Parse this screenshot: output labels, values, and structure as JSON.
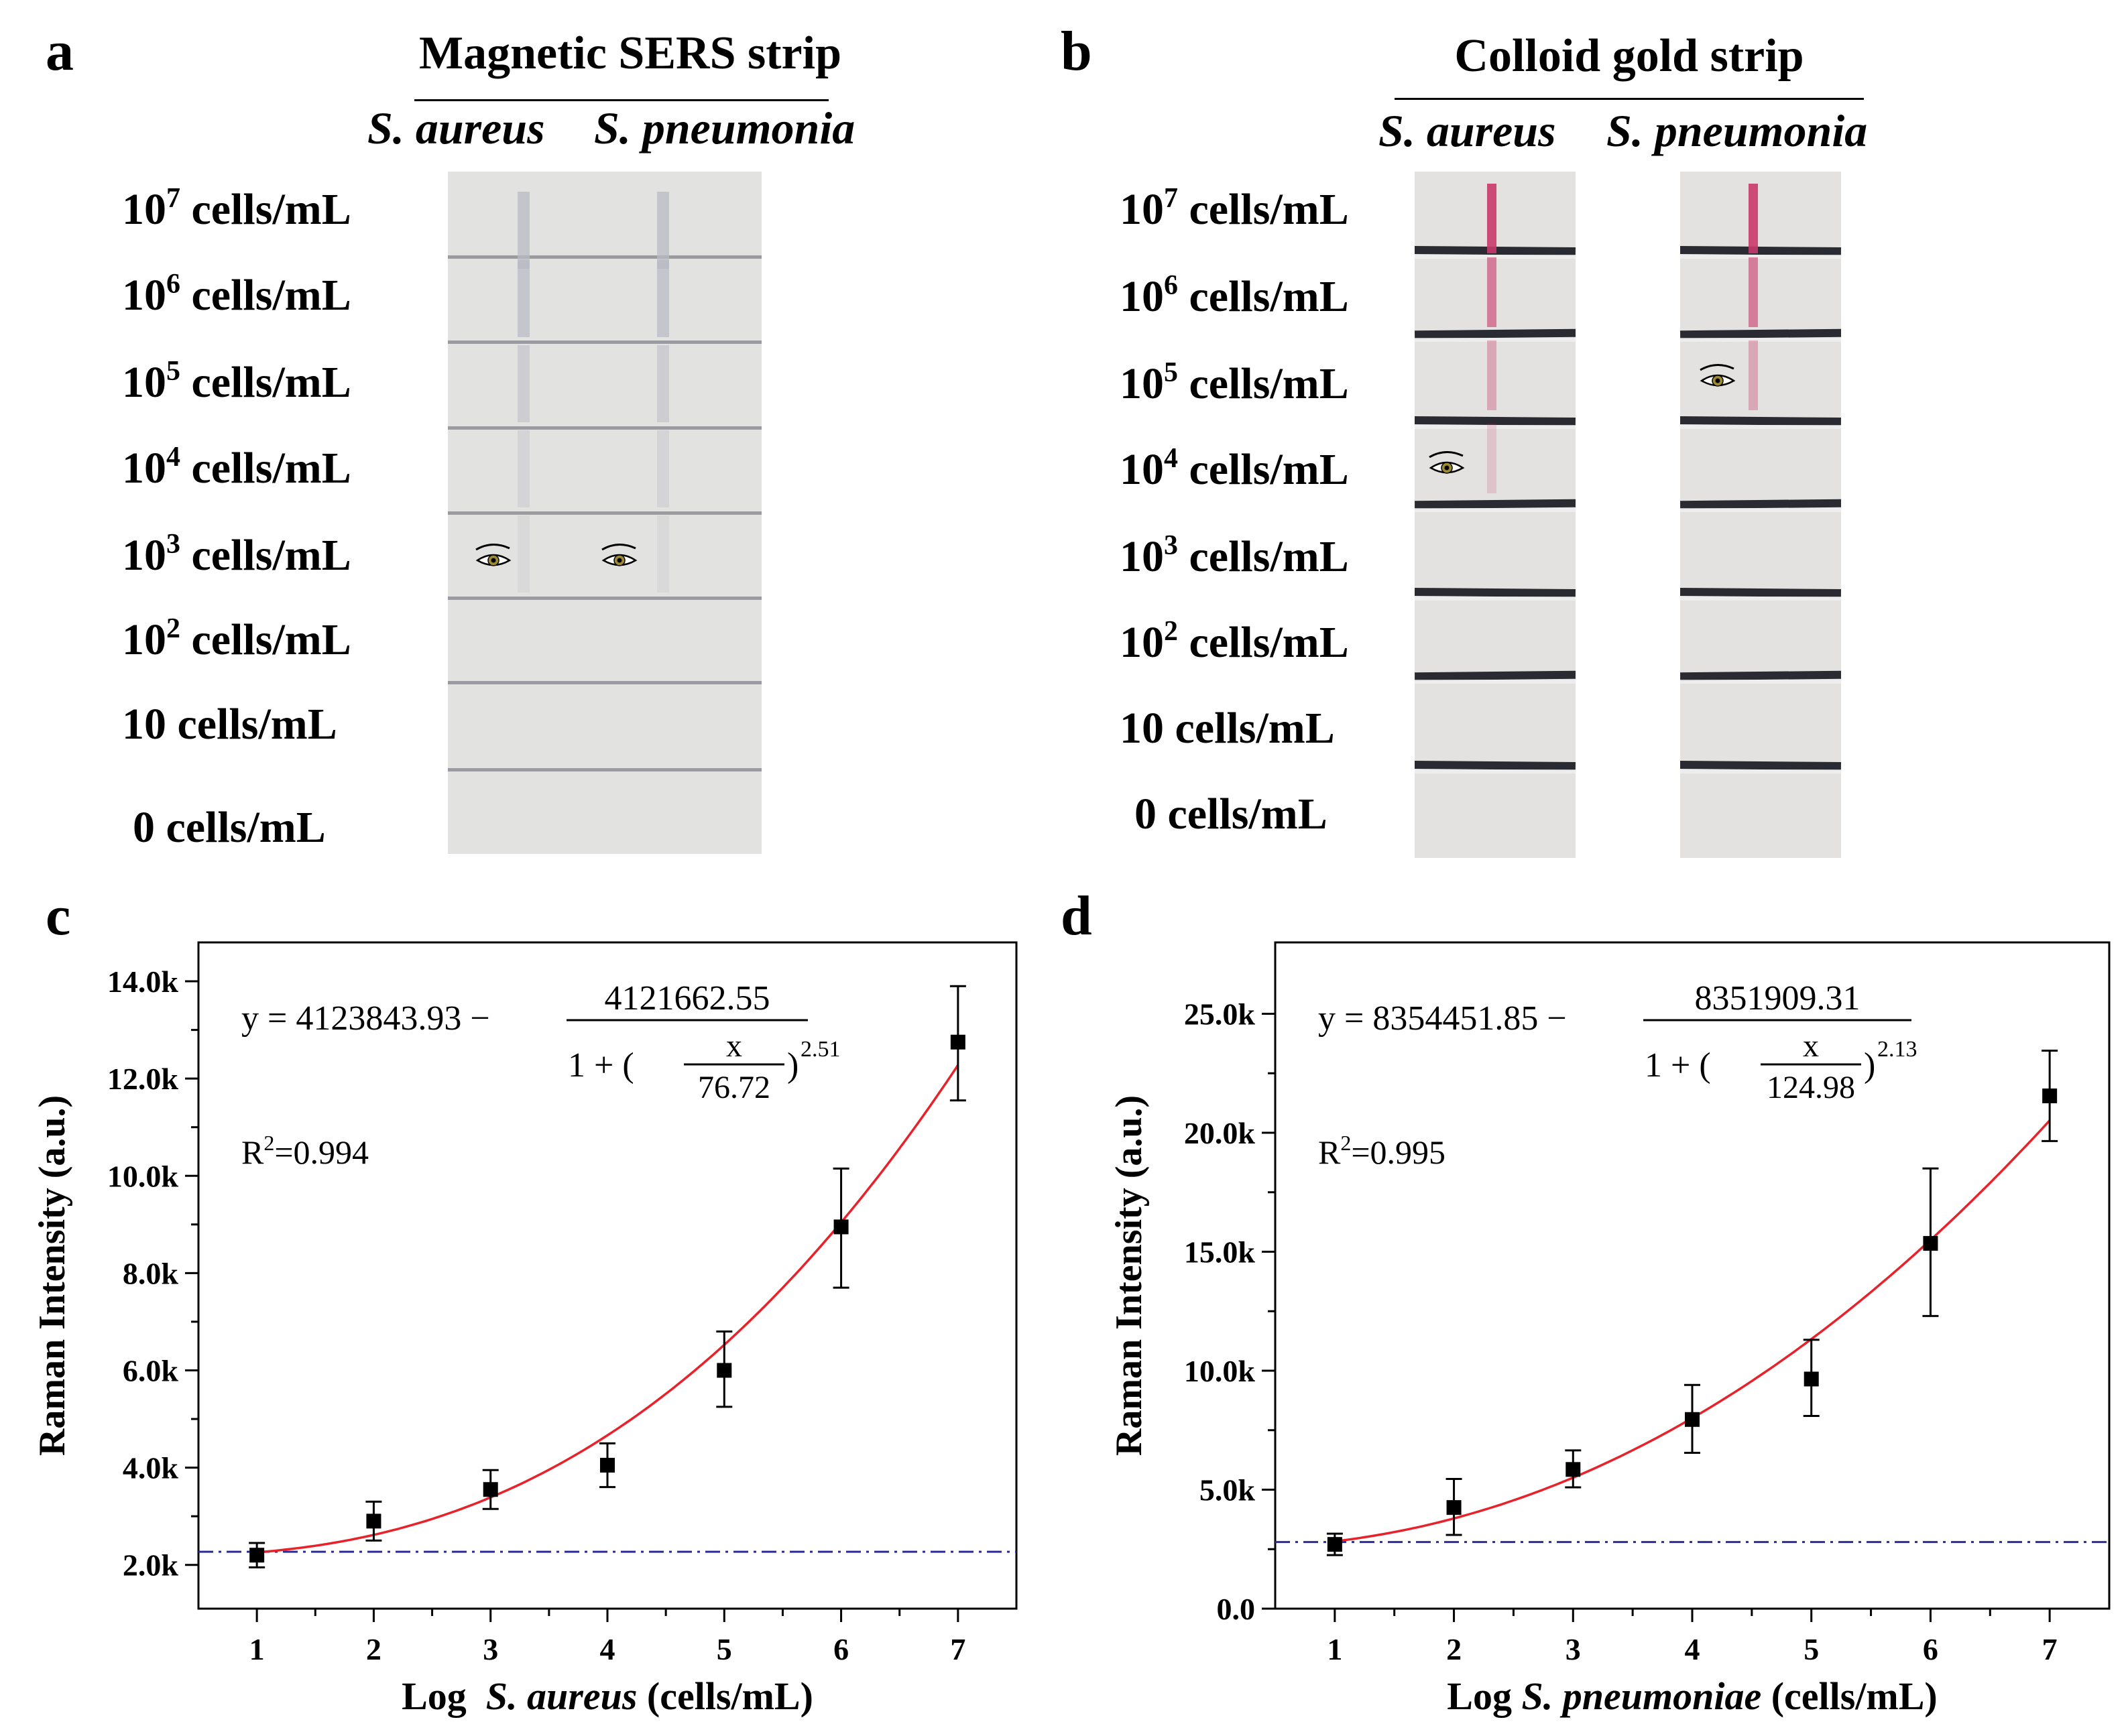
{
  "panels": {
    "a": {
      "letter": "a",
      "title": "Magnetic SERS strip",
      "species": [
        "S. aureus",
        "S. pneumonia"
      ],
      "concentrations": [
        {
          "base": "10",
          "exp": "7",
          "unit": " cells/mL"
        },
        {
          "base": "10",
          "exp": "6",
          "unit": " cells/mL"
        },
        {
          "base": "10",
          "exp": "5",
          "unit": " cells/mL"
        },
        {
          "base": "10",
          "exp": "4",
          "unit": " cells/mL"
        },
        {
          "base": "10",
          "exp": "3",
          "unit": " cells/mL"
        },
        {
          "base": "10",
          "exp": "2",
          "unit": " cells/mL"
        },
        {
          "base": "10",
          "exp": "",
          "unit": " cells/mL"
        },
        {
          "base": "0",
          "exp": "",
          "unit": " cells/mL"
        }
      ]
    },
    "b": {
      "letter": "b",
      "title": "Colloid gold strip",
      "species": [
        "S. aureus",
        "S. pneumonia"
      ],
      "concentrations": [
        {
          "base": "10",
          "exp": "7",
          "unit": " cells/mL"
        },
        {
          "base": "10",
          "exp": "6",
          "unit": " cells/mL"
        },
        {
          "base": "10",
          "exp": "5",
          "unit": " cells/mL"
        },
        {
          "base": "10",
          "exp": "4",
          "unit": " cells/mL"
        },
        {
          "base": "10",
          "exp": "3",
          "unit": " cells/mL"
        },
        {
          "base": "10",
          "exp": "2",
          "unit": " cells/mL"
        },
        {
          "base": "10",
          "exp": "",
          "unit": " cells/mL"
        },
        {
          "base": "0",
          "exp": "",
          "unit": " cells/mL"
        }
      ]
    },
    "c": {
      "letter": "c"
    },
    "d": {
      "letter": "d"
    }
  },
  "colors": {
    "fit": "#e8222a",
    "lod": "#2b2b9a",
    "points": "#000000",
    "sers_line": "#b9b9c4",
    "gold_line": "#c83a6a",
    "divider": "#2a2a32"
  },
  "chart_data": [
    {
      "type": "scatter",
      "panel": "c",
      "x": [
        1,
        2,
        3,
        4,
        5,
        6,
        7
      ],
      "y": [
        2200,
        2900,
        3550,
        4050,
        6000,
        8950,
        12750
      ],
      "yerr_upper": [
        2450,
        3300,
        3950,
        4500,
        6800,
        10150,
        13900
      ],
      "yerr_lower": [
        1950,
        2500,
        3150,
        3600,
        5250,
        7700,
        11550
      ],
      "fit": {
        "a": 4123843.93,
        "b": 4121662.55,
        "x0": 76.72,
        "p": 2.51
      },
      "lod": 2270,
      "xlim": [
        0.5,
        7.5
      ],
      "ylim": [
        1100,
        14800
      ],
      "xticks": [
        1,
        2,
        3,
        4,
        5,
        6,
        7
      ],
      "xtick_labels": [
        "1",
        "2",
        "3",
        "4",
        "5",
        "6",
        "7"
      ],
      "yticks": [
        2000,
        4000,
        6000,
        8000,
        10000,
        12000,
        14000
      ],
      "ytick_labels": [
        "2.0k",
        "4.0k",
        "6.0k",
        "8.0k",
        "10.0k",
        "12.0k",
        "14.0k"
      ],
      "xlabel_prefix": "Log  ",
      "xlabel_species": "S. aureus",
      "xlabel_suffix": " (cells/mL)",
      "ylabel": "Raman Intensity (a.u.)",
      "eq_lhs": "y = 4123843.93 −",
      "eq_num": "4121662.55",
      "eq_den_prefix": "1 + (",
      "eq_x": "x",
      "eq_x0": "76.72",
      "eq_den_suffix": ")",
      "eq_exp": "2.51",
      "r2_prefix": "R",
      "r2_exp": "2",
      "r2_value": "=0.994"
    },
    {
      "type": "scatter",
      "panel": "d",
      "x": [
        1,
        2,
        3,
        4,
        5,
        6,
        7
      ],
      "y": [
        2700,
        4250,
        5850,
        7950,
        9650,
        15350,
        21550
      ],
      "yerr_upper": [
        3150,
        5450,
        6650,
        9400,
        11300,
        18500,
        23450
      ],
      "yerr_lower": [
        2250,
        3100,
        5100,
        6550,
        8100,
        12300,
        19650
      ],
      "fit": {
        "a": 8354451.85,
        "b": 8351909.31,
        "x0": 124.98,
        "p": 2.13
      },
      "lod": 2800,
      "xlim": [
        0.5,
        7.5
      ],
      "ylim": [
        0,
        28000
      ],
      "xticks": [
        1,
        2,
        3,
        4,
        5,
        6,
        7
      ],
      "xtick_labels": [
        "1",
        "2",
        "3",
        "4",
        "5",
        "6",
        "7"
      ],
      "yticks": [
        0,
        5000,
        10000,
        15000,
        20000,
        25000
      ],
      "ytick_labels": [
        "0.0",
        "5.0k",
        "10.0k",
        "15.0k",
        "20.0k",
        "25.0k"
      ],
      "xlabel_prefix": "Log ",
      "xlabel_species": "S. pneumoniae",
      "xlabel_suffix": " (cells/mL)",
      "ylabel": "Raman Intensity (a.u.)",
      "eq_lhs": "y = 8354451.85 −",
      "eq_num": "8351909.31",
      "eq_den_prefix": "1 + (",
      "eq_x": "x",
      "eq_x0": "124.98",
      "eq_den_suffix": ")",
      "eq_exp": "2.13",
      "r2_prefix": "R",
      "r2_exp": "2",
      "r2_value": "=0.995"
    }
  ]
}
